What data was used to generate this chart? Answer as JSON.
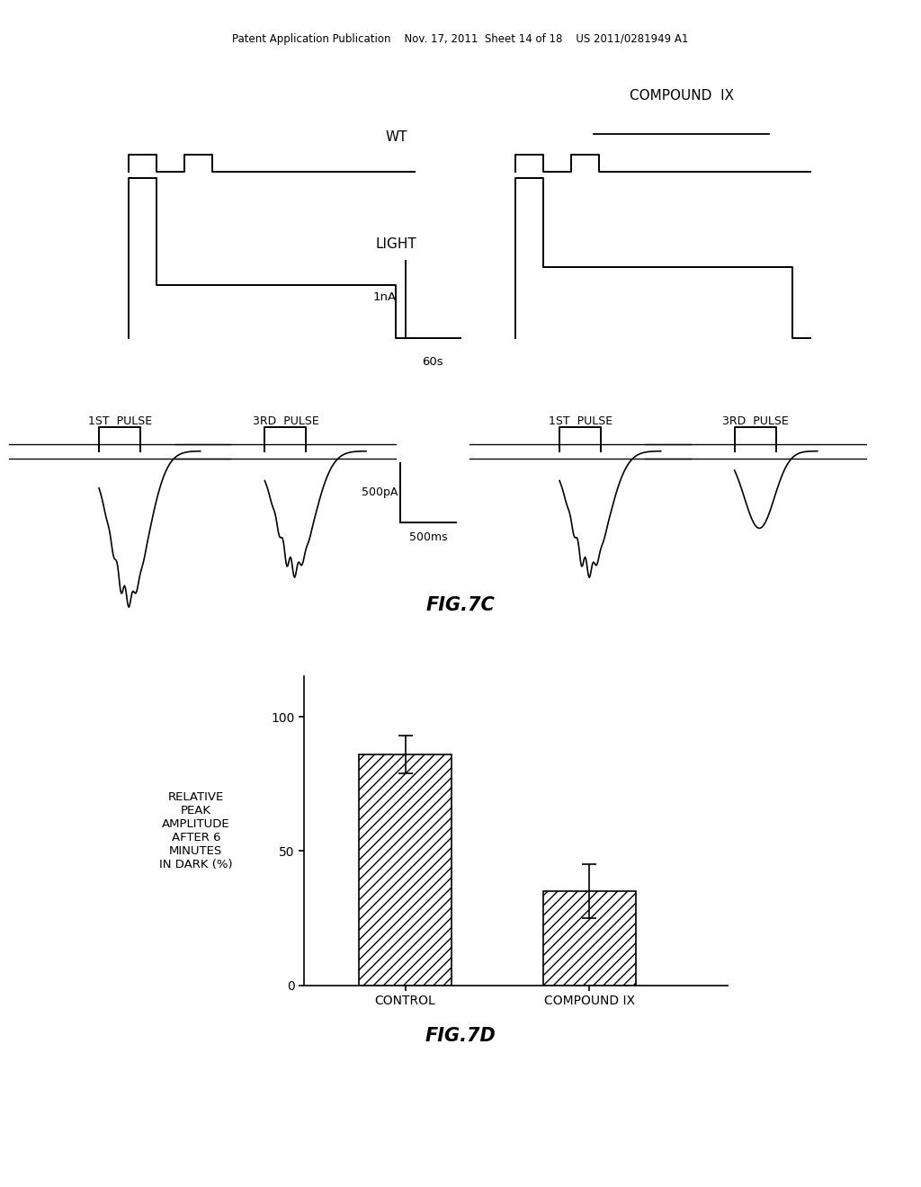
{
  "header_text": "Patent Application Publication    Nov. 17, 2011  Sheet 14 of 18    US 2011/0281949 A1",
  "fig7c_label": "FIG.7C",
  "fig7d_label": "FIG.7D",
  "compound_ix_label": "COMPOUND  IX",
  "wt_label": "WT",
  "light_label": "LIGHT",
  "scale_bar_1nA": "1nA",
  "scale_bar_60s": "60s",
  "pulse_labels": [
    "1ST  PULSE",
    "3RD  PULSE",
    "1ST  PULSE",
    "3RD  PULSE"
  ],
  "scale_bar_500pA": "500pA",
  "scale_bar_500ms": "500ms",
  "bar_categories": [
    "CONTROL",
    "COMPOUND IX"
  ],
  "bar_values": [
    86,
    35
  ],
  "bar_errors": [
    7,
    10
  ],
  "ylabel_lines": [
    "RELATIVE",
    "PEAK",
    "AMPLITUDE",
    "AFTER 6",
    "MINUTES",
    "IN DARK (%)"
  ],
  "yticks": [
    0,
    50,
    100
  ],
  "background_color": "#ffffff",
  "hatch": "///",
  "text_color": "#000000"
}
